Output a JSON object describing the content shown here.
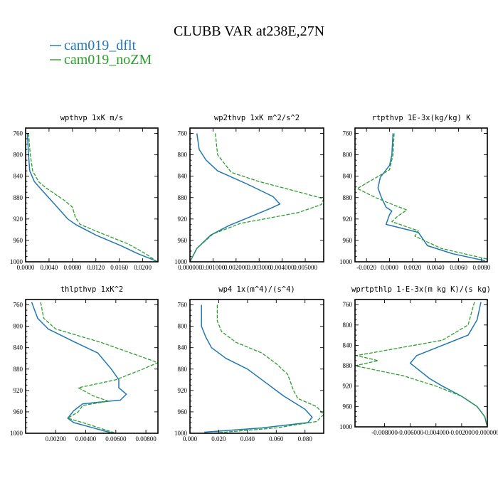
{
  "title": "CLUBB VAR at238E,27N",
  "legend": [
    {
      "label": "cam019_dflt",
      "color": "#1f77b4",
      "dash": "none"
    },
    {
      "label": "cam019_noZM",
      "color": "#2ca02c",
      "dash": "dashed"
    }
  ],
  "chart_data": [
    {
      "type": "line",
      "title": "wpthvp  1xK m/s",
      "xlim": [
        0,
        0.0226
      ],
      "ylim": [
        750,
        1000
      ],
      "y_inverted": true,
      "xticks": [
        0.0,
        0.004,
        0.008,
        0.012,
        0.016,
        0.02
      ],
      "xtick_labels": [
        "0.0000",
        "0.0040",
        "0.0080",
        "0.0120",
        "0.0160",
        "0.0200"
      ],
      "yticks": [
        760,
        800,
        840,
        880,
        920,
        960,
        1000
      ],
      "series": [
        {
          "name": "cam019_dflt",
          "points": [
            [
              0.0003,
              760
            ],
            [
              0.0005,
              800
            ],
            [
              0.0007,
              830
            ],
            [
              0.0015,
              850
            ],
            [
              0.0027,
              865
            ],
            [
              0.005,
              893
            ],
            [
              0.0072,
              920
            ],
            [
              0.0085,
              930
            ],
            [
              0.012,
              950
            ],
            [
              0.0163,
              970
            ],
            [
              0.0192,
              985
            ],
            [
              0.0215,
              995
            ],
            [
              0.0226,
              1000
            ]
          ]
        },
        {
          "name": "cam019_noZM",
          "points": [
            [
              0.0005,
              760
            ],
            [
              0.0008,
              800
            ],
            [
              0.0012,
              830
            ],
            [
              0.0022,
              850
            ],
            [
              0.0035,
              862
            ],
            [
              0.0066,
              885
            ],
            [
              0.008,
              898
            ],
            [
              0.0085,
              917
            ],
            [
              0.0093,
              930
            ],
            [
              0.013,
              947
            ],
            [
              0.0176,
              967
            ],
            [
              0.0205,
              985
            ],
            [
              0.0225,
              1000
            ]
          ]
        }
      ]
    },
    {
      "type": "line",
      "title": "wp2thvp  1xK m^2/s^2",
      "xlim": [
        0,
        0.0058
      ],
      "ylim": [
        750,
        1000
      ],
      "y_inverted": true,
      "xticks": [
        0.0,
        0.001,
        0.002,
        0.003,
        0.004,
        0.005
      ],
      "xtick_labels": [
        "0.000000",
        "0.001000",
        "0.002000",
        "0.003000",
        "0.004000",
        "0.005000"
      ],
      "yticks": [
        760,
        800,
        840,
        880,
        920,
        960,
        1000
      ],
      "series": [
        {
          "name": "cam019_dflt",
          "points": [
            [
              0.0003,
              760
            ],
            [
              0.0004,
              790
            ],
            [
              0.0007,
              810
            ],
            [
              0.0012,
              830
            ],
            [
              0.0025,
              855
            ],
            [
              0.0036,
              878
            ],
            [
              0.0039,
              892
            ],
            [
              0.0035,
              900
            ],
            [
              0.0025,
              918
            ],
            [
              0.0017,
              932
            ],
            [
              0.0009,
              950
            ],
            [
              0.0003,
              975
            ],
            [
              0,
              1000
            ]
          ]
        },
        {
          "name": "cam019_noZM",
          "points": [
            [
              0.0011,
              760
            ],
            [
              0.0012,
              800
            ],
            [
              0.0018,
              833
            ],
            [
              0.003,
              850
            ],
            [
              0.0045,
              867
            ],
            [
              0.0058,
              882
            ],
            [
              0.0057,
              893
            ],
            [
              0.0047,
              908
            ],
            [
              0.0022,
              928
            ],
            [
              0.001,
              948
            ],
            [
              0.0003,
              975
            ],
            [
              0,
              1000
            ]
          ]
        }
      ]
    },
    {
      "type": "line",
      "title": "rtpthvp  1E-3x(kg/kg) K",
      "xlim": [
        -0.003,
        0.0085
      ],
      "ylim": [
        750,
        1000
      ],
      "y_inverted": true,
      "xticks": [
        -0.002,
        0.0,
        0.002,
        0.004,
        0.006,
        0.008
      ],
      "xtick_labels": [
        "-0.0020",
        "0.0000",
        "0.0020",
        "0.0040",
        "0.0060",
        "0.0080"
      ],
      "yticks": [
        760,
        800,
        840,
        880,
        920,
        960,
        1000
      ],
      "series": [
        {
          "name": "cam019_dflt",
          "points": [
            [
              0.0003,
              760
            ],
            [
              0.0002,
              800
            ],
            [
              0.0,
              820
            ],
            [
              -0.0008,
              842
            ],
            [
              -0.001,
              862
            ],
            [
              -0.0007,
              880
            ],
            [
              -0.0003,
              898
            ],
            [
              0.0002,
              905
            ],
            [
              0,
              912
            ],
            [
              -0.0003,
              930
            ],
            [
              0.0025,
              945
            ],
            [
              0.0033,
              970
            ],
            [
              0.0055,
              985
            ],
            [
              0.0083,
              998
            ]
          ]
        },
        {
          "name": "cam019_noZM",
          "points": [
            [
              0.0004,
              760
            ],
            [
              0.0003,
              800
            ],
            [
              0,
              828
            ],
            [
              -0.0016,
              848
            ],
            [
              -0.0028,
              863
            ],
            [
              -0.0012,
              880
            ],
            [
              0.0005,
              895
            ],
            [
              0.0015,
              903
            ],
            [
              0.0007,
              915
            ],
            [
              0.0002,
              925
            ],
            [
              0.0025,
              942
            ],
            [
              0.0022,
              952
            ],
            [
              0.0045,
              975
            ],
            [
              0.0085,
              995
            ]
          ]
        }
      ]
    },
    {
      "type": "line",
      "title": "thlpthvp  1xK^2",
      "xlim": [
        0,
        0.0088
      ],
      "ylim": [
        750,
        1000
      ],
      "y_inverted": true,
      "xticks": [
        0.002,
        0.004,
        0.006,
        0.008
      ],
      "xtick_labels": [
        "0.00200",
        "0.00400",
        "0.00600",
        "0.00800"
      ],
      "yticks": [
        760,
        800,
        840,
        880,
        920,
        960,
        1000
      ],
      "series": [
        {
          "name": "cam019_dflt",
          "points": [
            [
              0.0004,
              755
            ],
            [
              0.0008,
              785
            ],
            [
              0.0015,
              805
            ],
            [
              0.0033,
              830
            ],
            [
              0.0048,
              850
            ],
            [
              0.0057,
              880
            ],
            [
              0.0062,
              900
            ],
            [
              0.0062,
              915
            ],
            [
              0.0067,
              927
            ],
            [
              0.0063,
              938
            ],
            [
              0.0038,
              945
            ],
            [
              0.0032,
              958
            ],
            [
              0.0028,
              972
            ],
            [
              0.0032,
              980
            ],
            [
              0.0058,
              1000
            ]
          ]
        },
        {
          "name": "cam019_noZM",
          "points": [
            [
              0.001,
              755
            ],
            [
              0.0012,
              785
            ],
            [
              0.002,
              805
            ],
            [
              0.005,
              830
            ],
            [
              0.007,
              850
            ],
            [
              0.0088,
              868
            ],
            [
              0.0078,
              880
            ],
            [
              0.006,
              900
            ],
            [
              0.0035,
              915
            ],
            [
              0.0045,
              930
            ],
            [
              0.0055,
              940
            ],
            [
              0.0038,
              948
            ],
            [
              0.0035,
              960
            ],
            [
              0.0028,
              972
            ],
            [
              0.0038,
              980
            ],
            [
              0.006,
              1000
            ]
          ]
        }
      ]
    },
    {
      "type": "line",
      "title": "wp4  1x(m^4)/(s^4)",
      "xlim": [
        0,
        0.093
      ],
      "ylim": [
        750,
        1000
      ],
      "y_inverted": true,
      "xticks": [
        0.0,
        0.02,
        0.04,
        0.06,
        0.08
      ],
      "xtick_labels": [
        "0.000",
        "0.020",
        "0.040",
        "0.060",
        "0.080"
      ],
      "yticks": [
        760,
        800,
        840,
        880,
        920,
        960,
        1000
      ],
      "series": [
        {
          "name": "cam019_dflt",
          "points": [
            [
              0.008,
              760
            ],
            [
              0.008,
              800
            ],
            [
              0.011,
              820
            ],
            [
              0.015,
              840
            ],
            [
              0.025,
              860
            ],
            [
              0.04,
              880
            ],
            [
              0.055,
              910
            ],
            [
              0.065,
              930
            ],
            [
              0.08,
              955
            ],
            [
              0.085,
              970
            ],
            [
              0.082,
              980
            ],
            [
              0.05,
              990
            ],
            [
              0.01,
              998
            ]
          ]
        },
        {
          "name": "cam019_noZM",
          "points": [
            [
              0.019,
              760
            ],
            [
              0.019,
              790
            ],
            [
              0.022,
              810
            ],
            [
              0.032,
              830
            ],
            [
              0.05,
              850
            ],
            [
              0.06,
              870
            ],
            [
              0.068,
              890
            ],
            [
              0.072,
              920
            ],
            [
              0.075,
              935
            ],
            [
              0.088,
              950
            ],
            [
              0.093,
              965
            ],
            [
              0.088,
              978
            ],
            [
              0.06,
              990
            ],
            [
              0.015,
              1000
            ]
          ]
        }
      ]
    },
    {
      "type": "line",
      "title": "wprtpthlp  1-E-3x(m kg K)/(s kg)",
      "xlim": [
        -0.0103,
        0.0
      ],
      "ylim": [
        750,
        1000
      ],
      "y_inverted": true,
      "xticks": [
        -0.008,
        -0.006,
        -0.004,
        -0.002,
        0.0
      ],
      "xtick_labels": [
        "-0.008000",
        "-0.006000",
        "-0.004000",
        "-0.002000",
        "0.000000"
      ],
      "yticks": [
        760,
        800,
        840,
        880,
        920,
        960,
        1000
      ],
      "series": [
        {
          "name": "cam019_dflt",
          "points": [
            [
              -0.0005,
              755
            ],
            [
              -0.0008,
              790
            ],
            [
              -0.0015,
              820
            ],
            [
              -0.0035,
              840
            ],
            [
              -0.0055,
              860
            ],
            [
              -0.006,
              875
            ],
            [
              -0.0055,
              885
            ],
            [
              -0.0045,
              905
            ],
            [
              -0.0035,
              920
            ],
            [
              -0.002,
              940
            ],
            [
              -0.0008,
              960
            ],
            [
              -0.0002,
              980
            ],
            [
              0,
              1000
            ]
          ]
        },
        {
          "name": "cam019_noZM",
          "points": [
            [
              -0.001,
              755
            ],
            [
              -0.0015,
              800
            ],
            [
              -0.0035,
              830
            ],
            [
              -0.0102,
              860
            ],
            [
              -0.0085,
              870
            ],
            [
              -0.0103,
              880
            ],
            [
              -0.0065,
              900
            ],
            [
              -0.004,
              920
            ],
            [
              -0.002,
              940
            ],
            [
              -0.0008,
              960
            ],
            [
              -0.0002,
              980
            ],
            [
              0,
              1000
            ]
          ]
        }
      ]
    }
  ]
}
